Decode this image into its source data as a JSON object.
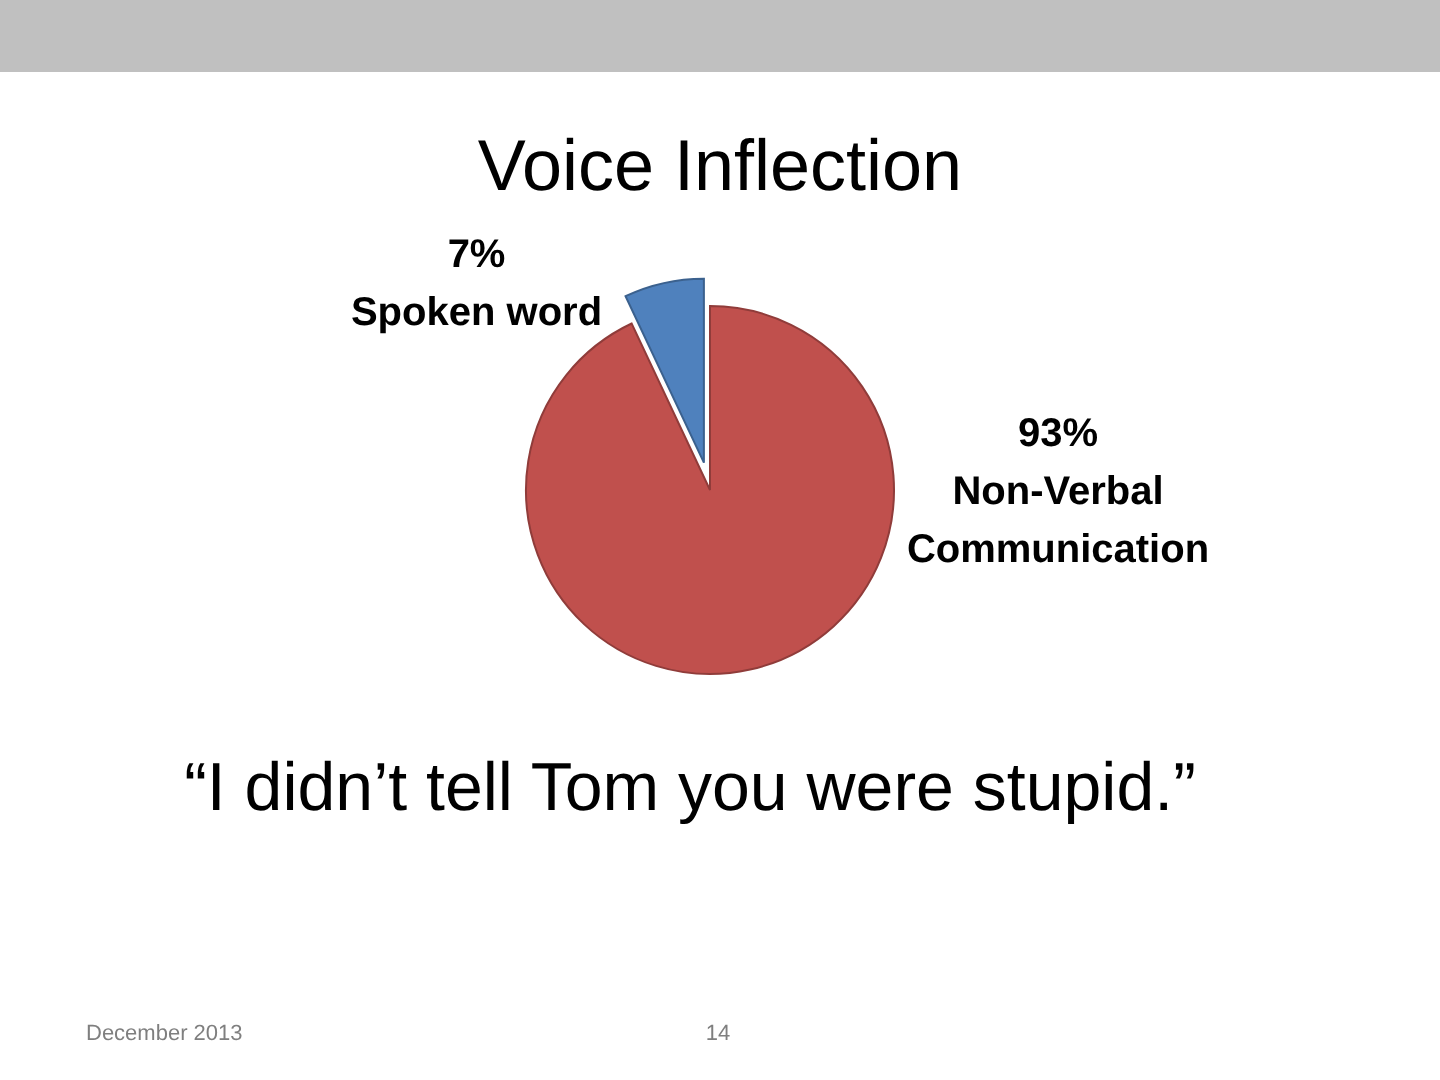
{
  "chart_data": {
    "type": "pie",
    "title": "Voice Inflection",
    "categories": [
      "Spoken word",
      "Non-Verbal Communication"
    ],
    "values": [
      7,
      93
    ],
    "colors": [
      "#4f81bd",
      "#c0504d"
    ],
    "value_labels": [
      "7%",
      "93%"
    ],
    "legend": false,
    "annotations": [
      "“I didn’t tell Tom you were stupid.”",
      "December 2013",
      "14"
    ]
  }
}
